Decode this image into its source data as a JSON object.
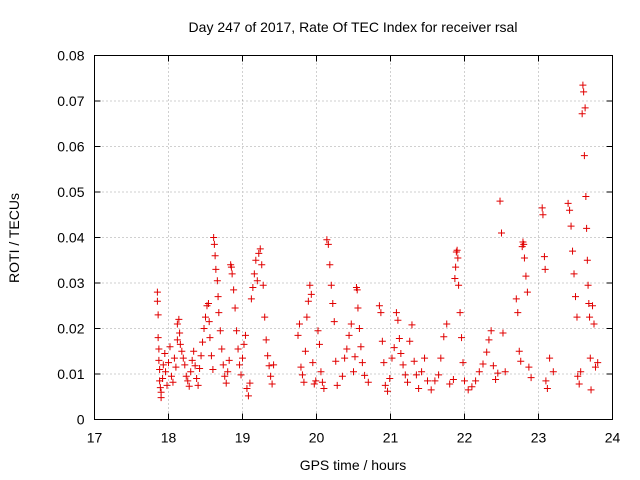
{
  "chart_data": {
    "type": "scatter",
    "title": "Day 247 of 2017, Rate Of TEC Index for receiver rsal",
    "xlabel": "GPS time / hours",
    "ylabel": "ROTI / TECUs",
    "xlim": [
      17,
      24
    ],
    "ylim": [
      0,
      0.08
    ],
    "x_ticks": [
      "17",
      "18",
      "19",
      "20",
      "21",
      "22",
      "23",
      "24"
    ],
    "y_ticks": [
      "0",
      "0.01",
      "0.02",
      "0.03",
      "0.04",
      "0.05",
      "0.06",
      "0.07",
      "0.08"
    ],
    "grid": true,
    "marker": "plus",
    "color": "#e00000",
    "series": [
      {
        "points": [
          [
            17.85,
            0.028
          ],
          [
            17.85,
            0.026
          ],
          [
            17.86,
            0.023
          ],
          [
            17.86,
            0.018
          ],
          [
            17.87,
            0.0155
          ],
          [
            17.87,
            0.013
          ],
          [
            17.88,
            0.011
          ],
          [
            17.88,
            0.0085
          ],
          [
            17.89,
            0.007
          ],
          [
            17.9,
            0.006
          ],
          [
            17.9,
            0.0048
          ],
          [
            17.92,
            0.009
          ],
          [
            17.93,
            0.012
          ],
          [
            17.95,
            0.0145
          ],
          [
            17.96,
            0.0105
          ],
          [
            17.98,
            0.0075
          ],
          [
            18.0,
            0.0125
          ],
          [
            18.02,
            0.016
          ],
          [
            18.04,
            0.0095
          ],
          [
            18.06,
            0.0082
          ],
          [
            18.08,
            0.0135
          ],
          [
            18.1,
            0.0115
          ],
          [
            18.12,
            0.0175
          ],
          [
            18.12,
            0.021
          ],
          [
            18.14,
            0.022
          ],
          [
            18.15,
            0.019
          ],
          [
            18.16,
            0.0165
          ],
          [
            18.18,
            0.015
          ],
          [
            18.2,
            0.0135
          ],
          [
            18.22,
            0.012
          ],
          [
            18.24,
            0.0095
          ],
          [
            18.26,
            0.0085
          ],
          [
            18.28,
            0.0073
          ],
          [
            18.3,
            0.0105
          ],
          [
            18.32,
            0.013
          ],
          [
            18.34,
            0.015
          ],
          [
            18.36,
            0.0118
          ],
          [
            18.38,
            0.009
          ],
          [
            18.4,
            0.0075
          ],
          [
            18.42,
            0.0112
          ],
          [
            18.44,
            0.014
          ],
          [
            18.46,
            0.017
          ],
          [
            18.48,
            0.02
          ],
          [
            18.5,
            0.0225
          ],
          [
            18.52,
            0.025
          ],
          [
            18.54,
            0.0255
          ],
          [
            18.55,
            0.0215
          ],
          [
            18.56,
            0.018
          ],
          [
            18.58,
            0.014
          ],
          [
            18.6,
            0.011
          ],
          [
            18.61,
            0.04
          ],
          [
            18.62,
            0.0385
          ],
          [
            18.63,
            0.036
          ],
          [
            18.64,
            0.033
          ],
          [
            18.66,
            0.0305
          ],
          [
            18.67,
            0.027
          ],
          [
            18.68,
            0.0235
          ],
          [
            18.7,
            0.0195
          ],
          [
            18.72,
            0.0155
          ],
          [
            18.74,
            0.012
          ],
          [
            18.76,
            0.0095
          ],
          [
            18.78,
            0.008
          ],
          [
            18.8,
            0.0105
          ],
          [
            18.82,
            0.013
          ],
          [
            18.84,
            0.034
          ],
          [
            18.85,
            0.0335
          ],
          [
            18.86,
            0.032
          ],
          [
            18.88,
            0.0285
          ],
          [
            18.9,
            0.0245
          ],
          [
            18.92,
            0.0195
          ],
          [
            18.94,
            0.0155
          ],
          [
            18.96,
            0.012
          ],
          [
            18.98,
            0.0098
          ],
          [
            19.0,
            0.0135
          ],
          [
            19.02,
            0.0165
          ],
          [
            19.04,
            0.0185
          ],
          [
            19.06,
            0.0068
          ],
          [
            19.08,
            0.0052
          ],
          [
            19.1,
            0.008
          ],
          [
            19.12,
            0.0265
          ],
          [
            19.14,
            0.029
          ],
          [
            19.16,
            0.032
          ],
          [
            19.18,
            0.035
          ],
          [
            19.2,
            0.0305
          ],
          [
            19.22,
            0.0365
          ],
          [
            19.24,
            0.0375
          ],
          [
            19.26,
            0.034
          ],
          [
            19.28,
            0.0295
          ],
          [
            19.3,
            0.0225
          ],
          [
            19.32,
            0.0175
          ],
          [
            19.34,
            0.014
          ],
          [
            19.36,
            0.0118
          ],
          [
            19.38,
            0.0095
          ],
          [
            19.4,
            0.0078
          ],
          [
            19.42,
            0.012
          ],
          [
            19.75,
            0.0185
          ],
          [
            19.77,
            0.021
          ],
          [
            19.79,
            0.0115
          ],
          [
            19.81,
            0.0098
          ],
          [
            19.83,
            0.0082
          ],
          [
            19.85,
            0.015
          ],
          [
            19.87,
            0.0225
          ],
          [
            19.89,
            0.026
          ],
          [
            19.91,
            0.0295
          ],
          [
            19.93,
            0.0275
          ],
          [
            19.95,
            0.0125
          ],
          [
            19.97,
            0.0078
          ],
          [
            19.99,
            0.0085
          ],
          [
            20.02,
            0.0195
          ],
          [
            20.04,
            0.0165
          ],
          [
            20.06,
            0.0105
          ],
          [
            20.08,
            0.0082
          ],
          [
            20.1,
            0.0068
          ],
          [
            20.14,
            0.0395
          ],
          [
            20.16,
            0.0385
          ],
          [
            20.18,
            0.034
          ],
          [
            20.2,
            0.0295
          ],
          [
            20.22,
            0.0255
          ],
          [
            20.24,
            0.0215
          ],
          [
            20.26,
            0.0128
          ],
          [
            20.28,
            0.0075
          ],
          [
            20.35,
            0.0095
          ],
          [
            20.38,
            0.0135
          ],
          [
            20.41,
            0.0155
          ],
          [
            20.44,
            0.0185
          ],
          [
            20.47,
            0.021
          ],
          [
            20.5,
            0.0105
          ],
          [
            20.52,
            0.0138
          ],
          [
            20.54,
            0.029
          ],
          [
            20.55,
            0.0285
          ],
          [
            20.56,
            0.0245
          ],
          [
            20.58,
            0.02
          ],
          [
            20.6,
            0.016
          ],
          [
            20.62,
            0.0125
          ],
          [
            20.65,
            0.0097
          ],
          [
            20.7,
            0.0082
          ],
          [
            20.85,
            0.025
          ],
          [
            20.87,
            0.0235
          ],
          [
            20.89,
            0.0172
          ],
          [
            20.91,
            0.0125
          ],
          [
            20.93,
            0.0075
          ],
          [
            20.96,
            0.0062
          ],
          [
            20.99,
            0.009
          ],
          [
            21.02,
            0.0135
          ],
          [
            21.05,
            0.0158
          ],
          [
            21.08,
            0.0235
          ],
          [
            21.1,
            0.0218
          ],
          [
            21.12,
            0.0178
          ],
          [
            21.14,
            0.0145
          ],
          [
            21.17,
            0.012
          ],
          [
            21.2,
            0.0098
          ],
          [
            21.23,
            0.0082
          ],
          [
            21.26,
            0.0172
          ],
          [
            21.29,
            0.0208
          ],
          [
            21.32,
            0.0128
          ],
          [
            21.35,
            0.0098
          ],
          [
            21.38,
            0.0068
          ],
          [
            21.42,
            0.0105
          ],
          [
            21.46,
            0.0135
          ],
          [
            21.5,
            0.0085
          ],
          [
            21.55,
            0.0065
          ],
          [
            21.6,
            0.0085
          ],
          [
            21.65,
            0.0098
          ],
          [
            21.68,
            0.0135
          ],
          [
            21.72,
            0.0182
          ],
          [
            21.76,
            0.021
          ],
          [
            21.8,
            0.0078
          ],
          [
            21.85,
            0.0088
          ],
          [
            21.87,
            0.031
          ],
          [
            21.88,
            0.0335
          ],
          [
            21.89,
            0.0368
          ],
          [
            21.9,
            0.0372
          ],
          [
            21.91,
            0.0355
          ],
          [
            21.92,
            0.0295
          ],
          [
            21.94,
            0.0235
          ],
          [
            21.96,
            0.018
          ],
          [
            21.98,
            0.0125
          ],
          [
            22.0,
            0.0085
          ],
          [
            22.05,
            0.0065
          ],
          [
            22.1,
            0.0072
          ],
          [
            22.15,
            0.0085
          ],
          [
            22.2,
            0.0105
          ],
          [
            22.25,
            0.0122
          ],
          [
            22.3,
            0.0148
          ],
          [
            22.33,
            0.0175
          ],
          [
            22.36,
            0.0195
          ],
          [
            22.39,
            0.0118
          ],
          [
            22.42,
            0.0088
          ],
          [
            22.45,
            0.0102
          ],
          [
            22.48,
            0.048
          ],
          [
            22.5,
            0.041
          ],
          [
            22.52,
            0.019
          ],
          [
            22.55,
            0.0105
          ],
          [
            22.7,
            0.0265
          ],
          [
            22.72,
            0.0235
          ],
          [
            22.74,
            0.015
          ],
          [
            22.76,
            0.0128
          ],
          [
            22.78,
            0.038
          ],
          [
            22.79,
            0.039
          ],
          [
            22.8,
            0.0385
          ],
          [
            22.81,
            0.0355
          ],
          [
            22.83,
            0.0315
          ],
          [
            22.85,
            0.028
          ],
          [
            22.87,
            0.0115
          ],
          [
            22.9,
            0.0092
          ],
          [
            23.05,
            0.0465
          ],
          [
            23.06,
            0.045
          ],
          [
            23.08,
            0.0358
          ],
          [
            23.09,
            0.033
          ],
          [
            23.1,
            0.0085
          ],
          [
            23.12,
            0.0068
          ],
          [
            23.15,
            0.0135
          ],
          [
            23.2,
            0.0105
          ],
          [
            23.4,
            0.0475
          ],
          [
            23.42,
            0.046
          ],
          [
            23.44,
            0.0425
          ],
          [
            23.46,
            0.037
          ],
          [
            23.48,
            0.032
          ],
          [
            23.5,
            0.027
          ],
          [
            23.52,
            0.0225
          ],
          [
            23.53,
            0.0095
          ],
          [
            23.55,
            0.0078
          ],
          [
            23.57,
            0.0105
          ],
          [
            23.59,
            0.0672
          ],
          [
            23.6,
            0.0735
          ],
          [
            23.61,
            0.072
          ],
          [
            23.62,
            0.058
          ],
          [
            23.63,
            0.0685
          ],
          [
            23.64,
            0.049
          ],
          [
            23.65,
            0.042
          ],
          [
            23.66,
            0.035
          ],
          [
            23.67,
            0.0295
          ],
          [
            23.68,
            0.0255
          ],
          [
            23.69,
            0.0225
          ],
          [
            23.7,
            0.0135
          ],
          [
            23.71,
            0.0065
          ],
          [
            23.73,
            0.025
          ],
          [
            23.75,
            0.021
          ],
          [
            23.77,
            0.0115
          ],
          [
            23.8,
            0.0125
          ]
        ]
      }
    ]
  }
}
